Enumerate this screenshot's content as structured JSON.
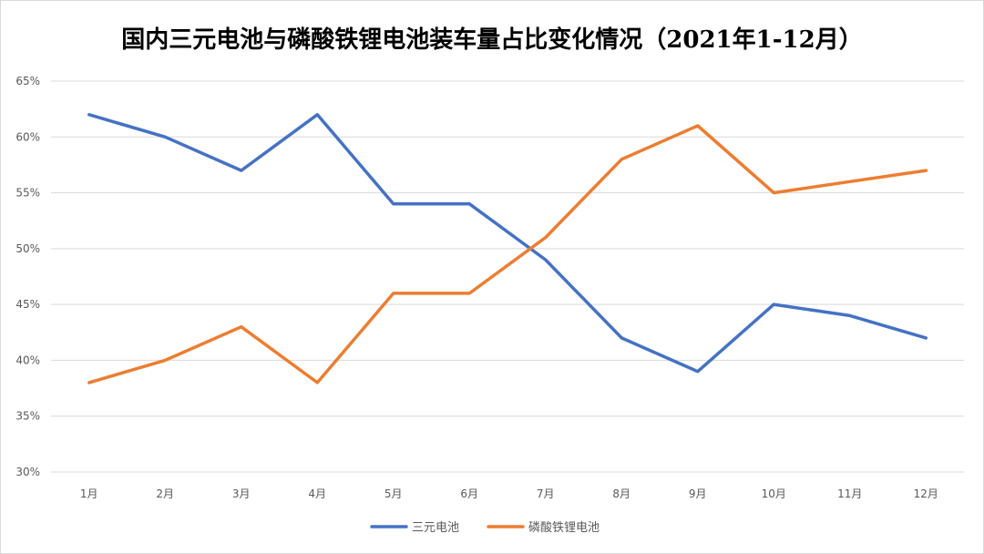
{
  "chart_data": {
    "type": "line",
    "title": "国内三元电池与磷酸铁锂电池装车量占比变化情况（2021年1-12月）",
    "xlabel": "",
    "ylabel": "",
    "categories": [
      "1月",
      "2月",
      "3月",
      "4月",
      "5月",
      "6月",
      "7月",
      "8月",
      "9月",
      "10月",
      "11月",
      "12月"
    ],
    "series": [
      {
        "name": "三元电池",
        "color": "#4472C4",
        "values": [
          62,
          60,
          57,
          62,
          54,
          54,
          49,
          42,
          39,
          45,
          44,
          42
        ]
      },
      {
        "name": "磷酸铁锂电池",
        "color": "#ED7D31",
        "values": [
          38,
          40,
          43,
          38,
          46,
          46,
          51,
          58,
          61,
          55,
          56,
          57
        ]
      }
    ],
    "ylim": [
      30,
      65
    ],
    "ytick_step": 5,
    "ytick_labels": [
      "30%",
      "35%",
      "40%",
      "45%",
      "50%",
      "55%",
      "60%",
      "65%"
    ],
    "grid": true,
    "legend": "bottom-center"
  }
}
